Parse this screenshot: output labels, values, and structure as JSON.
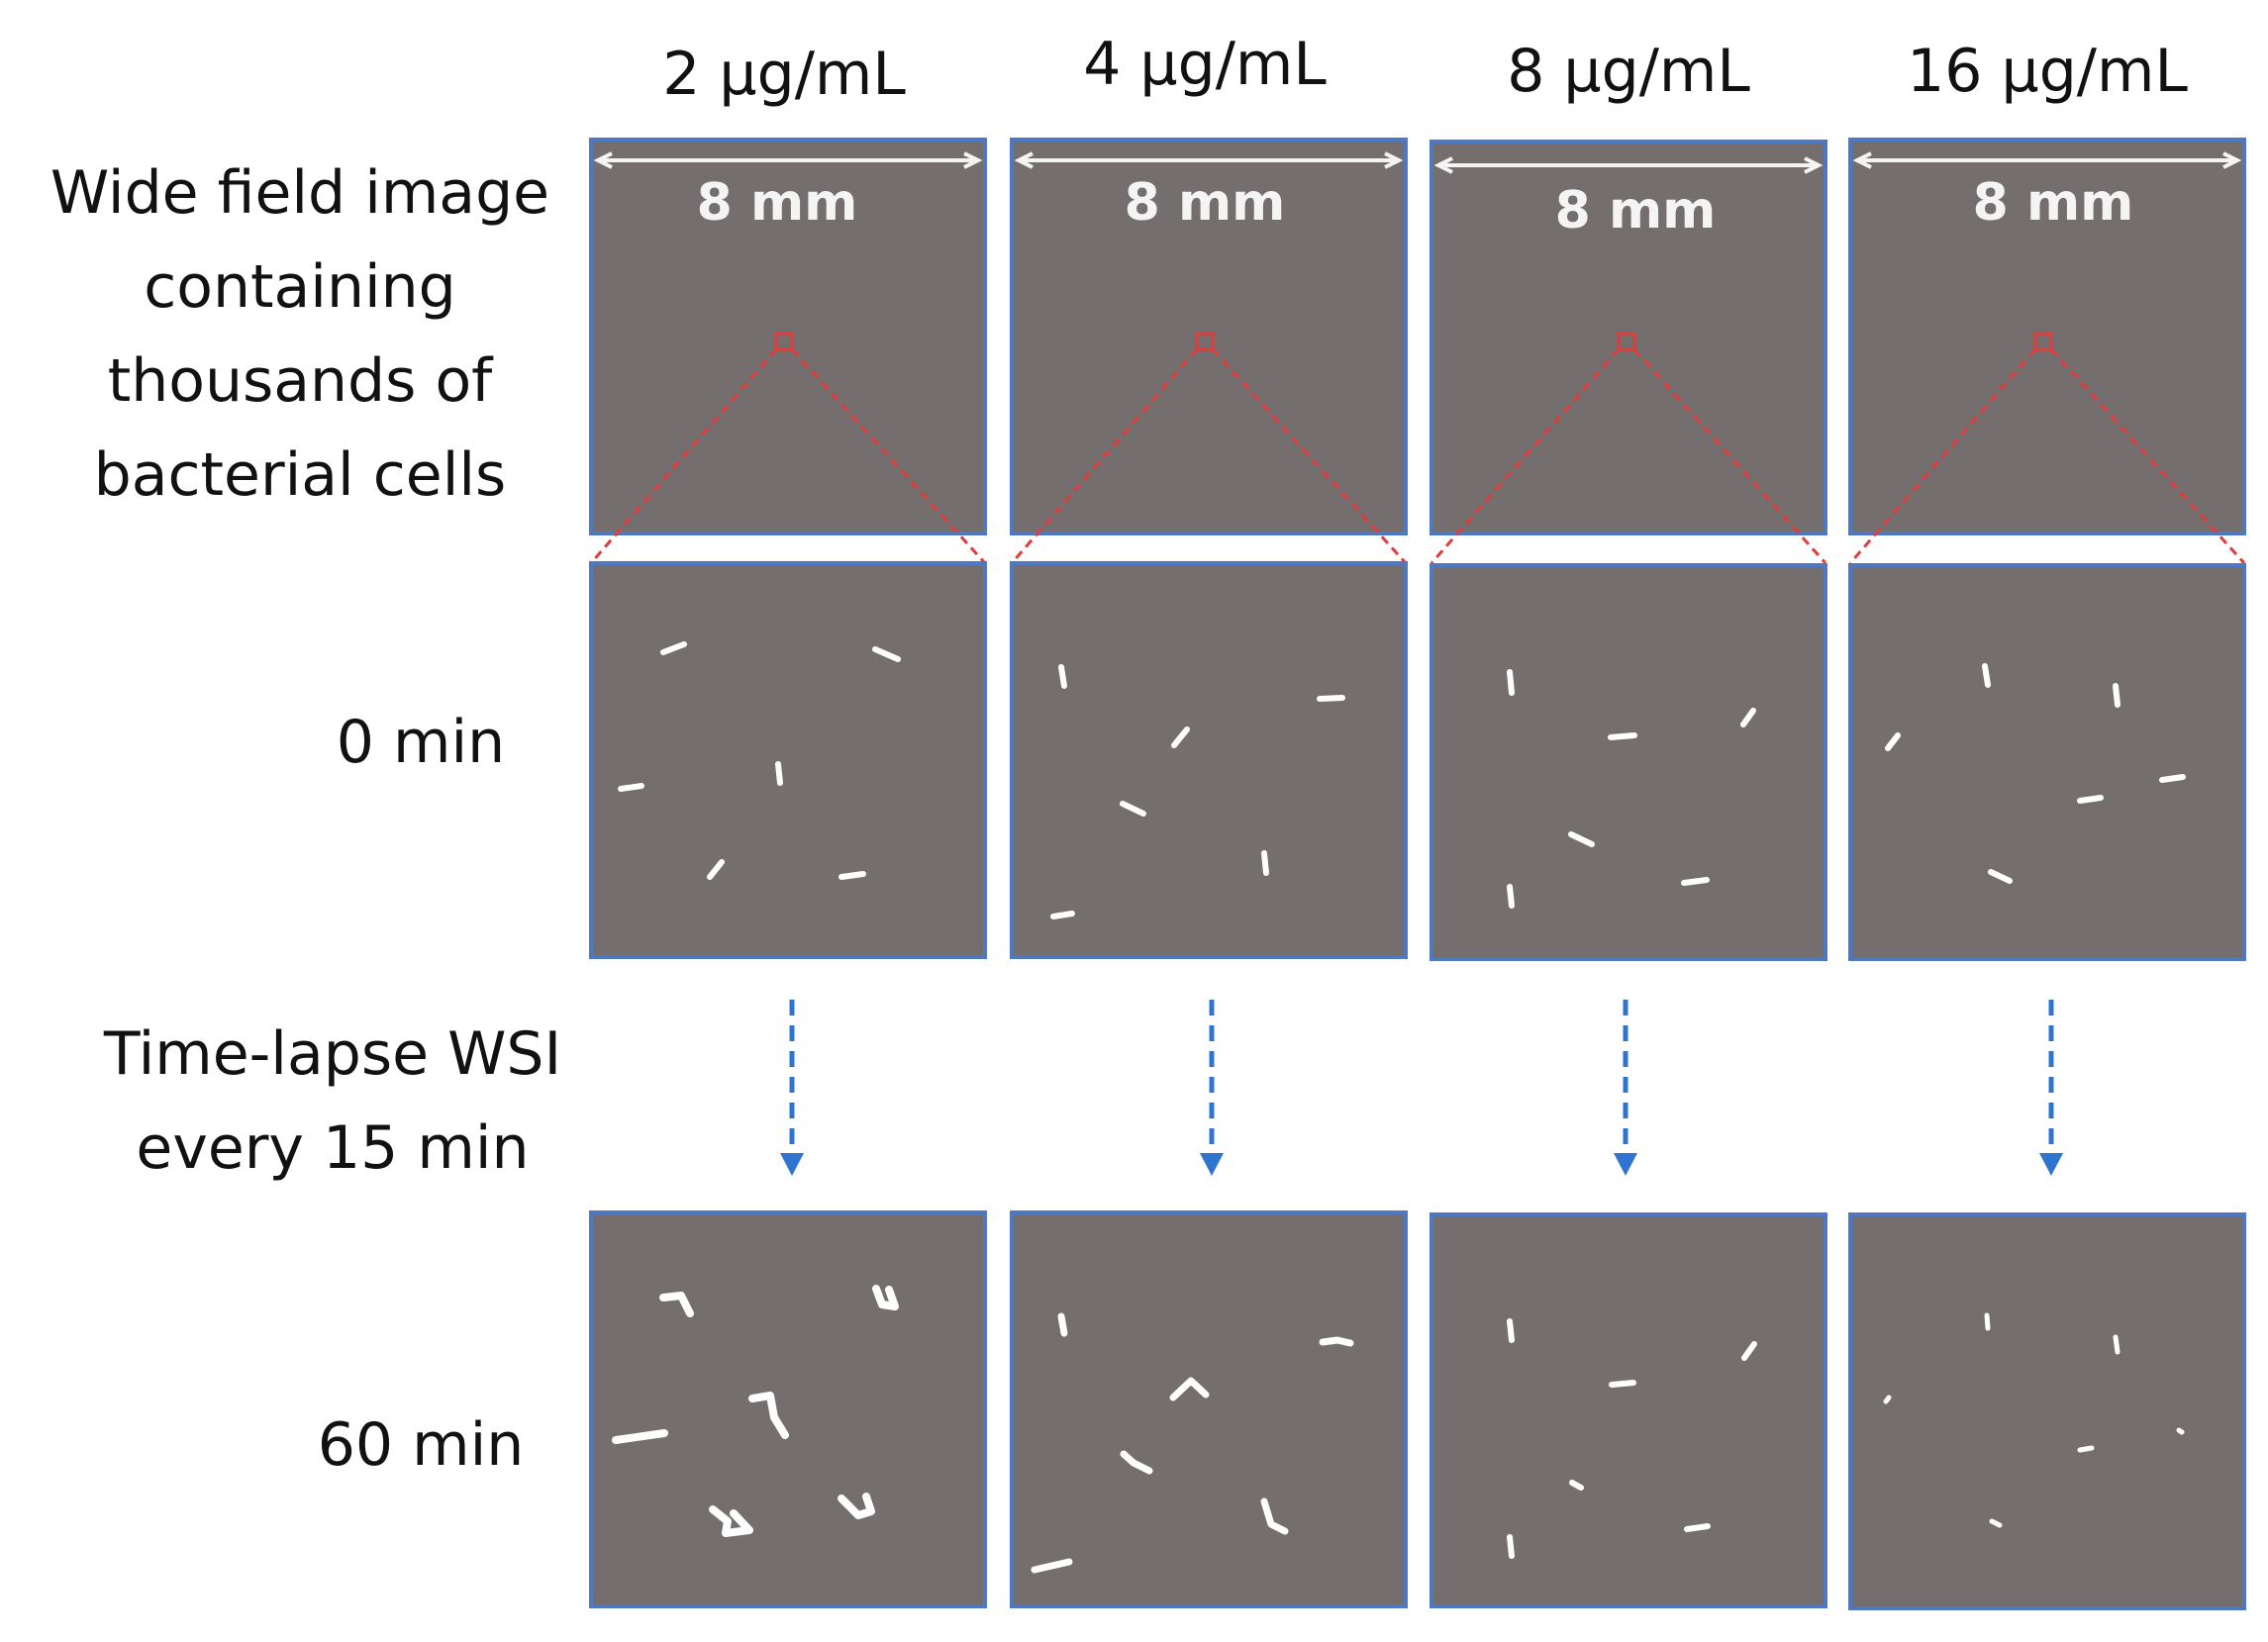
{
  "concentrations": [
    "2 µg/mL",
    "4 µg/mL",
    "8 µg/mL",
    "16 µg/mL"
  ],
  "scale_bar_label": "8 mm",
  "row_labels": {
    "wide_field": [
      "Wide field image",
      "containing",
      "thousands of",
      "bacterial cells"
    ],
    "time_0": "0 min",
    "timelapse": [
      "Time-lapse WSI",
      "every 15 min"
    ],
    "time_60": "60 min"
  },
  "colors": {
    "panel_fill": "#756e6e",
    "panel_border": "#4f78c2",
    "zoom_indicator": "#e03c3c",
    "arrow": "#2f74d0",
    "cell": "#ffffff"
  }
}
